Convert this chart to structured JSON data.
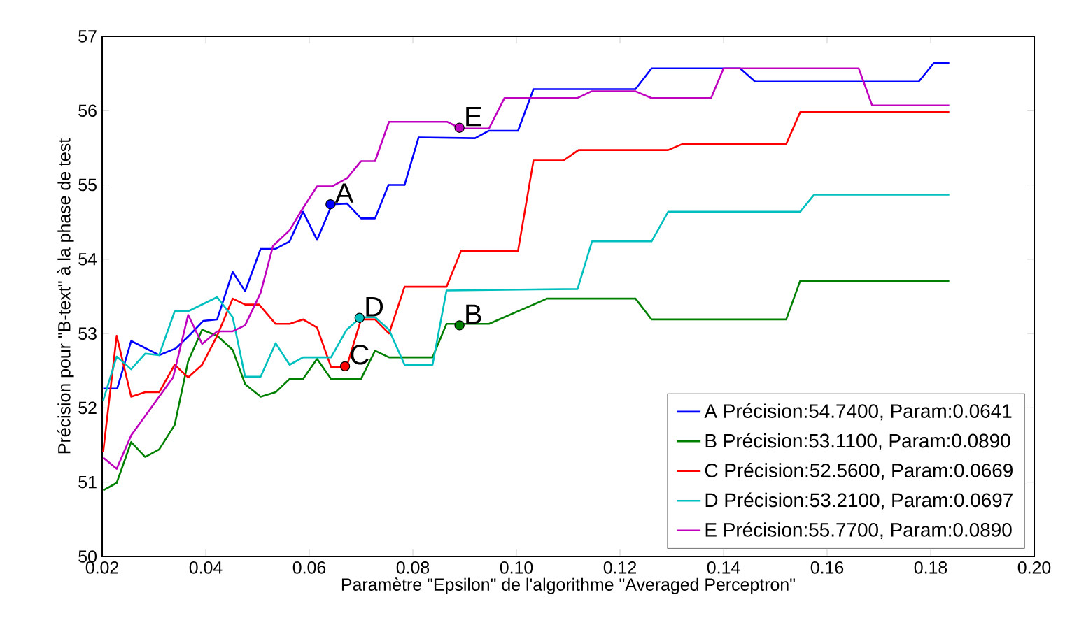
{
  "chart_data": {
    "type": "line",
    "xlabel": "Paramètre \"Epsilon\" de l'algorithme \"Averaged Perceptron\"",
    "ylabel": "Précision pour \"B-text\" à la phase de test",
    "xlim": [
      0.02,
      0.2
    ],
    "ylim": [
      50,
      57
    ],
    "xticks": [
      0.02,
      0.04,
      0.06,
      0.08,
      {
        "value": 0.1,
        "label": "0.10"
      },
      0.12,
      0.14,
      0.16,
      0.18,
      {
        "value": 0.2,
        "label": "0.20"
      }
    ],
    "yticks": [
      50,
      51,
      52,
      53,
      54,
      55,
      56,
      57
    ],
    "grid": false,
    "legend": "bottom right",
    "marker": "none",
    "line_style": "solid",
    "series": [
      {
        "name": "A Précision:54.7400, Param:0.0641",
        "color": "#0000ff",
        "x": [
          0.0202,
          0.0229,
          0.0256,
          0.031,
          0.0342,
          0.0369,
          0.0395,
          0.0422,
          0.0452,
          0.0476,
          0.0506,
          0.0535,
          0.0562,
          0.0588,
          0.0615,
          0.0644,
          0.0673,
          0.07,
          0.0727,
          0.0753,
          0.0784,
          0.0811,
          0.092,
          0.0947,
          0.1003,
          0.1033,
          0.123,
          0.1261,
          0.1432,
          0.1461,
          0.1777,
          0.1806,
          0.1836
        ],
        "values": [
          52.26,
          52.26,
          52.9,
          52.71,
          52.8,
          52.98,
          53.17,
          53.19,
          53.83,
          53.57,
          54.14,
          54.14,
          54.24,
          54.64,
          54.26,
          54.74,
          54.75,
          54.55,
          54.55,
          55.0,
          55.0,
          55.64,
          55.63,
          55.73,
          55.73,
          56.29,
          56.29,
          56.57,
          56.57,
          56.39,
          56.39,
          56.64,
          56.64
        ]
      },
      {
        "name": "B Précision:53.1100, Param:0.0890",
        "color": "#008000",
        "x": [
          0.0202,
          0.0228,
          0.0256,
          0.0283,
          0.031,
          0.034,
          0.0366,
          0.0393,
          0.0422,
          0.0452,
          0.0476,
          0.0506,
          0.0535,
          0.0562,
          0.0588,
          0.0615,
          0.0642,
          0.07,
          0.0727,
          0.0754,
          0.0838,
          0.0865,
          0.0947,
          0.1059,
          0.123,
          0.1261,
          0.1521,
          0.1548,
          0.1836
        ],
        "values": [
          50.89,
          50.99,
          51.54,
          51.34,
          51.44,
          51.77,
          52.63,
          53.05,
          52.97,
          52.78,
          52.32,
          52.15,
          52.21,
          52.39,
          52.39,
          52.66,
          52.39,
          52.39,
          52.77,
          52.68,
          52.68,
          53.13,
          53.13,
          53.47,
          53.47,
          53.19,
          53.19,
          53.71,
          53.71
        ]
      },
      {
        "name": "C Précision:52.5600, Param:0.0669",
        "color": "#ff0000",
        "x": [
          0.0202,
          0.0228,
          0.0256,
          0.0283,
          0.031,
          0.034,
          0.0366,
          0.0393,
          0.0422,
          0.0452,
          0.0476,
          0.0503,
          0.0535,
          0.0562,
          0.0588,
          0.0615,
          0.0642,
          0.0672,
          0.07,
          0.0727,
          0.0754,
          0.0784,
          0.0865,
          0.0893,
          0.1003,
          0.1033,
          0.1091,
          0.112,
          0.1293,
          0.132,
          0.1521,
          0.1548,
          0.1836
        ],
        "values": [
          51.41,
          52.97,
          52.15,
          52.21,
          52.21,
          52.58,
          52.41,
          52.58,
          52.97,
          53.47,
          53.39,
          53.39,
          53.13,
          53.13,
          53.19,
          53.08,
          52.55,
          52.55,
          53.19,
          53.19,
          53.0,
          53.63,
          53.63,
          54.11,
          54.11,
          55.33,
          55.33,
          55.47,
          55.47,
          55.55,
          55.55,
          55.98,
          55.98
        ]
      },
      {
        "name": "D Précision:53.2100, Param:0.0697",
        "color": "#00bfbf",
        "x": [
          0.0202,
          0.0228,
          0.0256,
          0.0283,
          0.031,
          0.034,
          0.0366,
          0.0422,
          0.0452,
          0.0476,
          0.0506,
          0.0535,
          0.0562,
          0.0588,
          0.0642,
          0.0672,
          0.07,
          0.0727,
          0.0754,
          0.0784,
          0.0838,
          0.0865,
          0.1118,
          0.1146,
          0.1261,
          0.1293,
          0.1548,
          0.1575,
          0.1836
        ],
        "values": [
          52.1,
          52.69,
          52.52,
          52.73,
          52.71,
          53.3,
          53.3,
          53.49,
          53.22,
          52.42,
          52.42,
          52.87,
          52.58,
          52.68,
          52.68,
          53.05,
          53.22,
          53.22,
          53.05,
          52.58,
          52.58,
          53.58,
          53.6,
          54.24,
          54.24,
          54.64,
          54.64,
          54.87,
          54.87
        ]
      },
      {
        "name": "E Précision:55.7700, Param:0.0890",
        "color": "#bf00bf",
        "x": [
          0.0202,
          0.0228,
          0.0256,
          0.0337,
          0.0366,
          0.0393,
          0.0422,
          0.0452,
          0.0476,
          0.0506,
          0.053,
          0.0562,
          0.0588,
          0.0615,
          0.0644,
          0.0673,
          0.07,
          0.0727,
          0.0754,
          0.0866,
          0.0892,
          0.0947,
          0.0977,
          0.1118,
          0.1145,
          0.123,
          0.1261,
          0.1376,
          0.14,
          0.1661,
          0.1687,
          0.1836
        ],
        "values": [
          51.33,
          51.18,
          51.63,
          52.41,
          53.25,
          52.86,
          53.03,
          53.03,
          53.11,
          53.55,
          54.18,
          54.39,
          54.69,
          54.98,
          54.98,
          55.09,
          55.32,
          55.32,
          55.85,
          55.85,
          55.76,
          55.76,
          56.17,
          56.17,
          56.26,
          56.26,
          56.17,
          56.17,
          56.57,
          56.57,
          56.07,
          56.07
        ]
      },
      {
        "type": "scatter",
        "marker": "circle",
        "x": [
          0.0641,
          0.089,
          0.0669,
          0.0697,
          0.089
        ],
        "values": [
          54.74,
          53.11,
          52.56,
          53.21,
          55.77
        ],
        "colors": [
          "#0000ff",
          "#008000",
          "#ff0000",
          "#00bfbf",
          "#bf00bf"
        ]
      }
    ],
    "annotations": [
      {
        "text": "A",
        "x": 0.0641,
        "y": 54.74
      },
      {
        "text": "B",
        "x": 0.089,
        "y": 53.11
      },
      {
        "text": "C",
        "x": 0.0669,
        "y": 52.56
      },
      {
        "text": "D",
        "x": 0.0697,
        "y": 53.21
      },
      {
        "text": "E",
        "x": 0.089,
        "y": 55.77
      }
    ]
  }
}
